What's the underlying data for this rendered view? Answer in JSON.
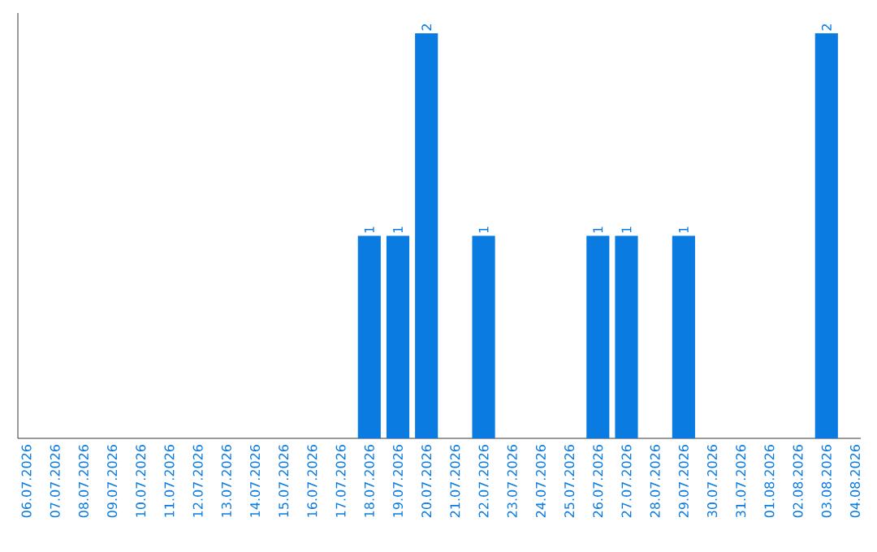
{
  "chart_data": {
    "type": "bar",
    "color": "#0a7be0",
    "categories": [
      "06.07.2026",
      "07.07.2026",
      "08.07.2026",
      "09.07.2026",
      "10.07.2026",
      "11.07.2026",
      "12.07.2026",
      "13.07.2026",
      "14.07.2026",
      "15.07.2026",
      "16.07.2026",
      "17.07.2026",
      "18.07.2026",
      "19.07.2026",
      "20.07.2026",
      "21.07.2026",
      "22.07.2026",
      "23.07.2026",
      "24.07.2026",
      "25.07.2026",
      "26.07.2026",
      "27.07.2026",
      "28.07.2026",
      "29.07.2026",
      "30.07.2026",
      "31.07.2026",
      "01.08.2026",
      "02.08.2026",
      "03.08.2026",
      "04.08.2026"
    ],
    "values": [
      null,
      null,
      null,
      null,
      null,
      null,
      null,
      null,
      null,
      null,
      null,
      null,
      1,
      1,
      2,
      null,
      1,
      null,
      null,
      null,
      1,
      1,
      null,
      1,
      null,
      null,
      null,
      null,
      2,
      null
    ],
    "data_labels": true,
    "tick_labels": "x",
    "grid": false
  }
}
